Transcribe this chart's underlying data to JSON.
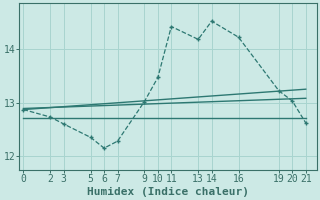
{
  "line1_x": [
    0,
    2,
    3,
    5,
    6,
    7,
    9,
    10,
    11,
    13,
    14,
    16,
    19,
    20,
    21
  ],
  "line1_y": [
    12.87,
    12.73,
    12.6,
    12.35,
    12.15,
    12.28,
    13.02,
    13.47,
    14.42,
    14.18,
    14.52,
    14.22,
    13.22,
    13.03,
    12.62
  ],
  "trend1_x": [
    0,
    21
  ],
  "trend1_y": [
    12.87,
    13.25
  ],
  "trend2_x": [
    0,
    21
  ],
  "trend2_y": [
    12.89,
    13.08
  ],
  "trend3_x": [
    0,
    21
  ],
  "trend3_y": [
    12.72,
    12.72
  ],
  "x_ticks": [
    0,
    2,
    3,
    5,
    6,
    7,
    9,
    10,
    11,
    13,
    14,
    16,
    19,
    20,
    21
  ],
  "yticks": [
    12,
    13,
    14
  ],
  "line_color": "#2d7872",
  "bg_color": "#cce9e5",
  "grid_color": "#a8d4cf",
  "axis_color": "#3a7068",
  "xlabel": "Humidex (Indice chaleur)",
  "ylim": [
    11.75,
    14.85
  ],
  "xlim": [
    -0.3,
    21.8
  ],
  "xlabel_fontsize": 8,
  "tick_fontsize": 7
}
